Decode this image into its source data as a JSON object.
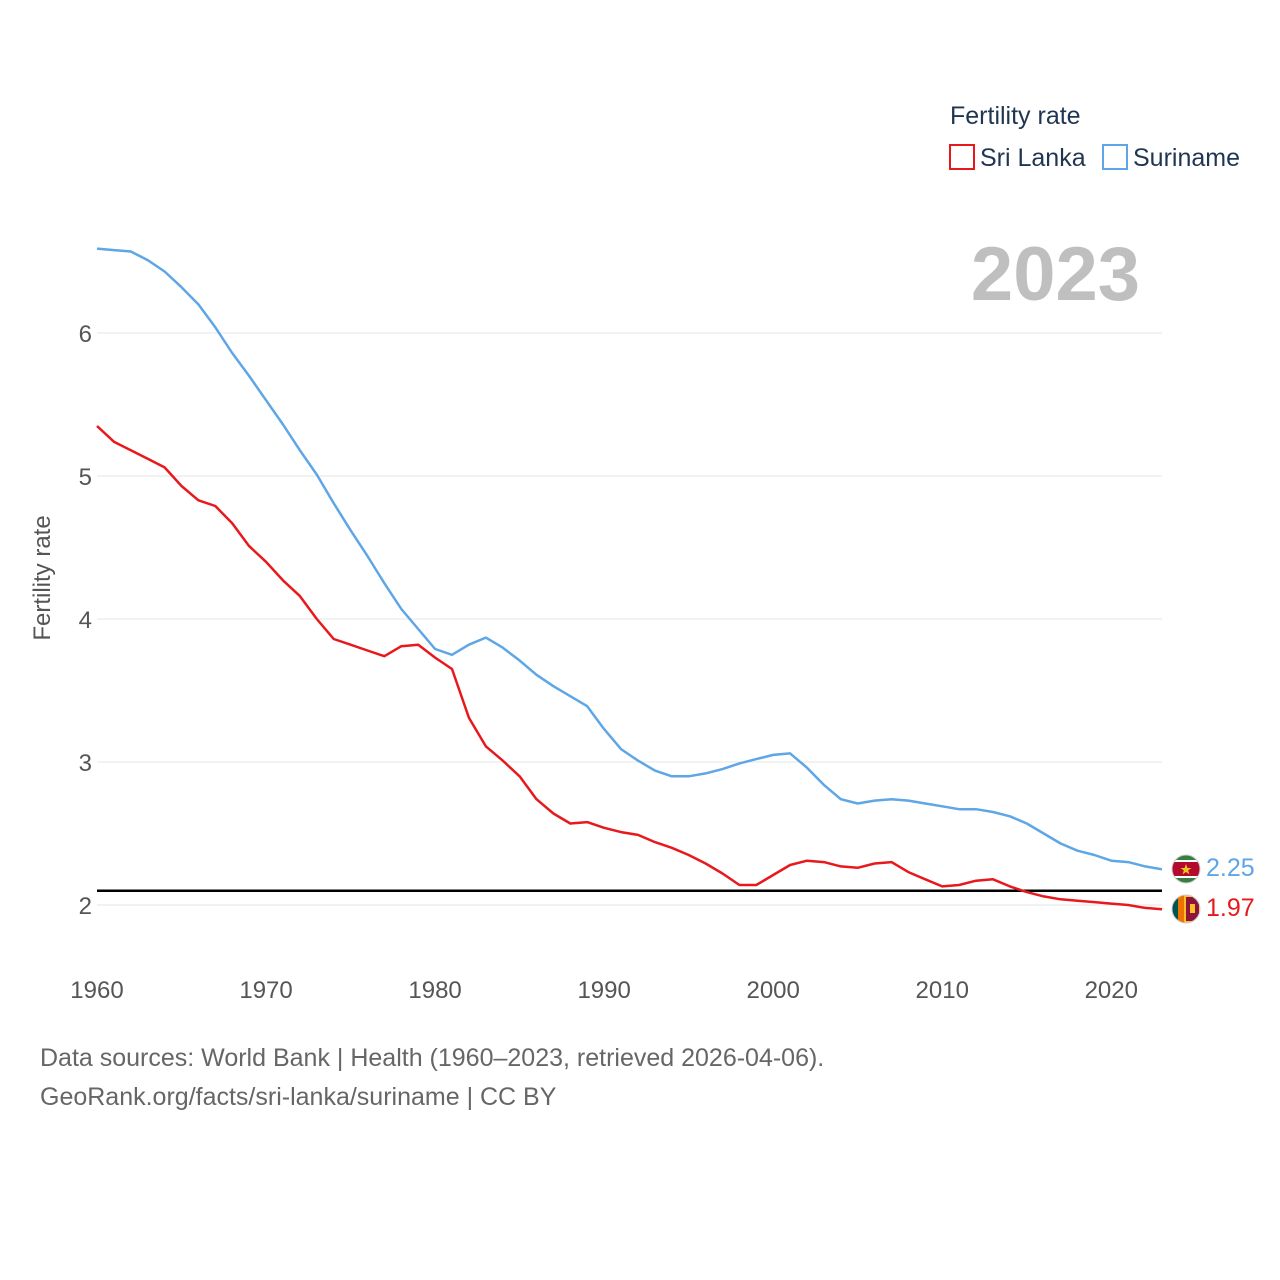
{
  "colors": {
    "sri_lanka": "#e8191c",
    "suriname": "#5ea6e6",
    "reference": "#000000",
    "grid": "#e6e6e6"
  },
  "chart_data": {
    "type": "line",
    "title": "",
    "highlight_year": "2023",
    "ylabel": "Fertility rate",
    "xlabel": "",
    "xlim": [
      1960,
      2023
    ],
    "ylim": [
      1.6,
      6.8
    ],
    "xticks": [
      1960,
      1970,
      1980,
      1990,
      2000,
      2010,
      2020
    ],
    "yticks": [
      2,
      3,
      4,
      5,
      6
    ],
    "reference_line": 2.1,
    "legend": {
      "title": "Fertility rate",
      "position": "top-right"
    },
    "x": [
      1960,
      1961,
      1962,
      1963,
      1964,
      1965,
      1966,
      1967,
      1968,
      1969,
      1970,
      1971,
      1972,
      1973,
      1974,
      1975,
      1976,
      1977,
      1978,
      1979,
      1980,
      1981,
      1982,
      1983,
      1984,
      1985,
      1986,
      1987,
      1988,
      1989,
      1990,
      1991,
      1992,
      1993,
      1994,
      1995,
      1996,
      1997,
      1998,
      1999,
      2000,
      2001,
      2002,
      2003,
      2004,
      2005,
      2006,
      2007,
      2008,
      2009,
      2010,
      2011,
      2012,
      2013,
      2014,
      2015,
      2016,
      2017,
      2018,
      2019,
      2020,
      2021,
      2022,
      2023
    ],
    "series": [
      {
        "name": "Sri Lanka",
        "end_label": "1.97",
        "values": [
          5.35,
          5.24,
          5.18,
          5.12,
          5.06,
          4.93,
          4.83,
          4.79,
          4.67,
          4.51,
          4.4,
          4.27,
          4.16,
          4.0,
          3.86,
          3.82,
          3.78,
          3.74,
          3.81,
          3.82,
          3.73,
          3.65,
          3.31,
          3.11,
          3.01,
          2.9,
          2.74,
          2.64,
          2.57,
          2.58,
          2.54,
          2.51,
          2.49,
          2.44,
          2.4,
          2.35,
          2.29,
          2.22,
          2.14,
          2.14,
          2.21,
          2.28,
          2.31,
          2.3,
          2.27,
          2.26,
          2.29,
          2.3,
          2.23,
          2.18,
          2.13,
          2.14,
          2.17,
          2.18,
          2.13,
          2.09,
          2.06,
          2.04,
          2.03,
          2.02,
          2.01,
          2.0,
          1.98,
          1.97
        ]
      },
      {
        "name": "Suriname",
        "end_label": "2.25",
        "values": [
          6.59,
          6.58,
          6.57,
          6.51,
          6.43,
          6.32,
          6.2,
          6.04,
          5.86,
          5.7,
          5.53,
          5.36,
          5.18,
          5.01,
          4.81,
          4.62,
          4.44,
          4.25,
          4.07,
          3.93,
          3.79,
          3.75,
          3.82,
          3.87,
          3.8,
          3.71,
          3.61,
          3.53,
          3.46,
          3.39,
          3.23,
          3.09,
          3.01,
          2.94,
          2.9,
          2.9,
          2.92,
          2.95,
          2.99,
          3.02,
          3.05,
          3.06,
          2.96,
          2.84,
          2.74,
          2.71,
          2.73,
          2.74,
          2.73,
          2.71,
          2.69,
          2.67,
          2.67,
          2.65,
          2.62,
          2.57,
          2.5,
          2.43,
          2.38,
          2.35,
          2.31,
          2.3,
          2.27,
          2.25
        ]
      }
    ]
  },
  "footer": {
    "line1": "Data sources: World Bank | Health (1960–2023, retrieved 2026-04-06).",
    "line2": "GeoRank.org/facts/sri-lanka/suriname | CC BY"
  }
}
